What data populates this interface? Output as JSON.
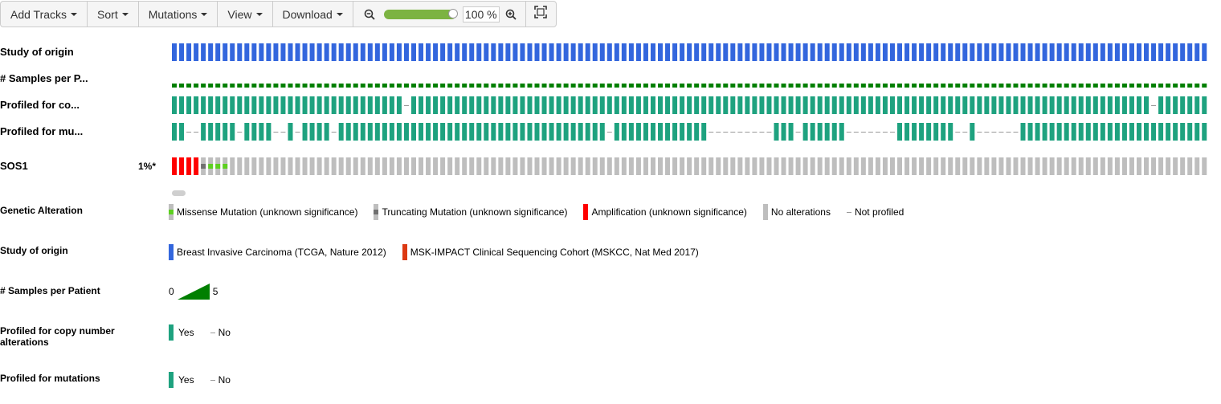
{
  "toolbar": {
    "add_tracks": "Add Tracks",
    "sort": "Sort",
    "mutations": "Mutations",
    "view": "View",
    "download": "Download",
    "zoom_value": "100 %",
    "zoom_level": 1.0
  },
  "tracks": {
    "study_of_origin": "Study of origin",
    "samples_per_patient": "# Samples per P...",
    "profiled_cna": "Profiled for co...",
    "profiled_mut": "Profiled for mu...",
    "gene": "SOS1",
    "gene_pct": "1%*"
  },
  "legend": {
    "genetic_alteration": {
      "title": "Genetic Alteration",
      "items": [
        "Missense Mutation (unknown significance)",
        "Truncating Mutation (unknown significance)",
        "Amplification (unknown significance)",
        "No alterations",
        "Not profiled"
      ]
    },
    "study_of_origin": {
      "title": "Study of origin",
      "items": [
        "Breast Invasive Carcinoma (TCGA, Nature 2012)",
        "MSK-IMPACT Clinical Sequencing Cohort (MSKCC, Nat Med 2017)"
      ]
    },
    "samples_per_patient": {
      "title": "# Samples per Patient",
      "min": "0",
      "max": "5"
    },
    "profiled_cna": {
      "title": "Profiled for copy number alterations",
      "yes": "Yes",
      "no": "No"
    },
    "profiled_mut": {
      "title": "Profiled for mutations",
      "yes": "Yes",
      "no": "No"
    }
  },
  "colors": {
    "study_breast": "#3366dd",
    "study_msk": "#dc3912",
    "samples": "#007f00",
    "profiled_yes": "#1ea27f",
    "missense": "#5dd020",
    "truncating": "#707070",
    "amplification": "#ff0000",
    "no_alteration": "#bebebe",
    "not_profiled": "#999999",
    "zoom_bar": "#7cb342"
  }
}
